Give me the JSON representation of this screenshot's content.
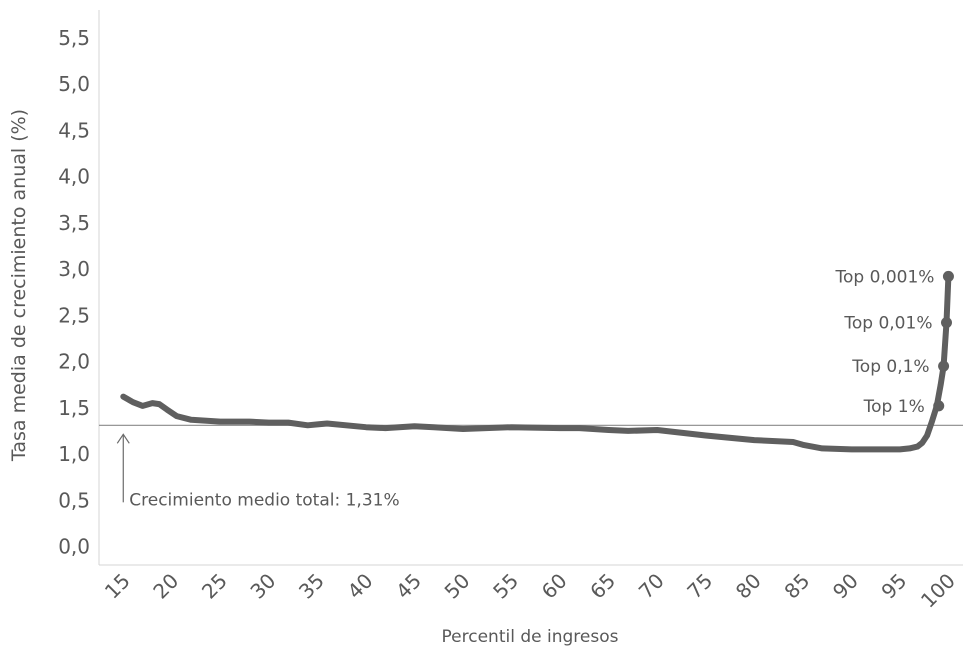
{
  "chart_data": {
    "type": "line",
    "title": "",
    "xlabel": "Percentil de ingresos",
    "ylabel": "Tasa media de crecimiento anual (%)",
    "xlim": [
      12.5,
      101.5
    ],
    "ylim": [
      -0.2,
      5.8
    ],
    "xticks": [
      {
        "value": 15,
        "label": "15"
      },
      {
        "value": 20,
        "label": "20"
      },
      {
        "value": 25,
        "label": "25"
      },
      {
        "value": 30,
        "label": "30"
      },
      {
        "value": 35,
        "label": "35"
      },
      {
        "value": 40,
        "label": "40"
      },
      {
        "value": 45,
        "label": "45"
      },
      {
        "value": 50,
        "label": "50"
      },
      {
        "value": 55,
        "label": "55"
      },
      {
        "value": 60,
        "label": "60"
      },
      {
        "value": 65,
        "label": "65"
      },
      {
        "value": 70,
        "label": "70"
      },
      {
        "value": 75,
        "label": "75"
      },
      {
        "value": 80,
        "label": "80"
      },
      {
        "value": 85,
        "label": "85"
      },
      {
        "value": 90,
        "label": "90"
      },
      {
        "value": 95,
        "label": "95"
      },
      {
        "value": 100,
        "label": "100"
      }
    ],
    "yticks": [
      {
        "value": 0.0,
        "label": "0,0"
      },
      {
        "value": 0.5,
        "label": "0,5"
      },
      {
        "value": 1.0,
        "label": "1,0"
      },
      {
        "value": 1.5,
        "label": "1,5"
      },
      {
        "value": 2.0,
        "label": "2,0"
      },
      {
        "value": 2.5,
        "label": "2,5"
      },
      {
        "value": 3.0,
        "label": "3,0"
      },
      {
        "value": 3.5,
        "label": "3,5"
      },
      {
        "value": 4.0,
        "label": "4,0"
      },
      {
        "value": 4.5,
        "label": "4,5"
      },
      {
        "value": 5.0,
        "label": "5,0"
      },
      {
        "value": 5.5,
        "label": "5,5"
      }
    ],
    "grid": false,
    "series": [
      {
        "color": "#5f5f5f",
        "x": [
          15,
          16,
          17,
          18,
          18.7,
          19.5,
          20.5,
          22,
          25,
          28,
          30,
          32,
          34,
          35,
          36,
          40,
          42,
          45,
          47,
          50,
          55,
          60,
          62,
          65,
          67,
          70,
          75,
          80,
          84,
          85,
          87,
          90,
          93,
          95,
          96,
          96.8,
          97.3,
          97.8,
          98.3,
          98.8,
          99.2,
          99.5,
          99.8,
          100
        ],
        "y": [
          1.62,
          1.56,
          1.52,
          1.55,
          1.54,
          1.48,
          1.41,
          1.37,
          1.35,
          1.35,
          1.34,
          1.34,
          1.31,
          1.32,
          1.33,
          1.29,
          1.28,
          1.3,
          1.29,
          1.27,
          1.29,
          1.28,
          1.28,
          1.26,
          1.25,
          1.26,
          1.2,
          1.15,
          1.13,
          1.1,
          1.06,
          1.05,
          1.05,
          1.05,
          1.06,
          1.08,
          1.12,
          1.2,
          1.35,
          1.52,
          1.75,
          1.95,
          2.42,
          2.92
        ]
      }
    ],
    "markers": [
      {
        "x": 99.0,
        "y": 1.52,
        "label": "Top 1%"
      },
      {
        "x": 99.5,
        "y": 1.95,
        "label": "Top 0,1%"
      },
      {
        "x": 99.8,
        "y": 2.42,
        "label": "Top 0,01%"
      },
      {
        "x": 100.0,
        "y": 2.92,
        "label": "Top 0,001%"
      }
    ],
    "reference_line": {
      "y": 1.31,
      "label": "Crecimiento medio total: 1,31%"
    }
  }
}
